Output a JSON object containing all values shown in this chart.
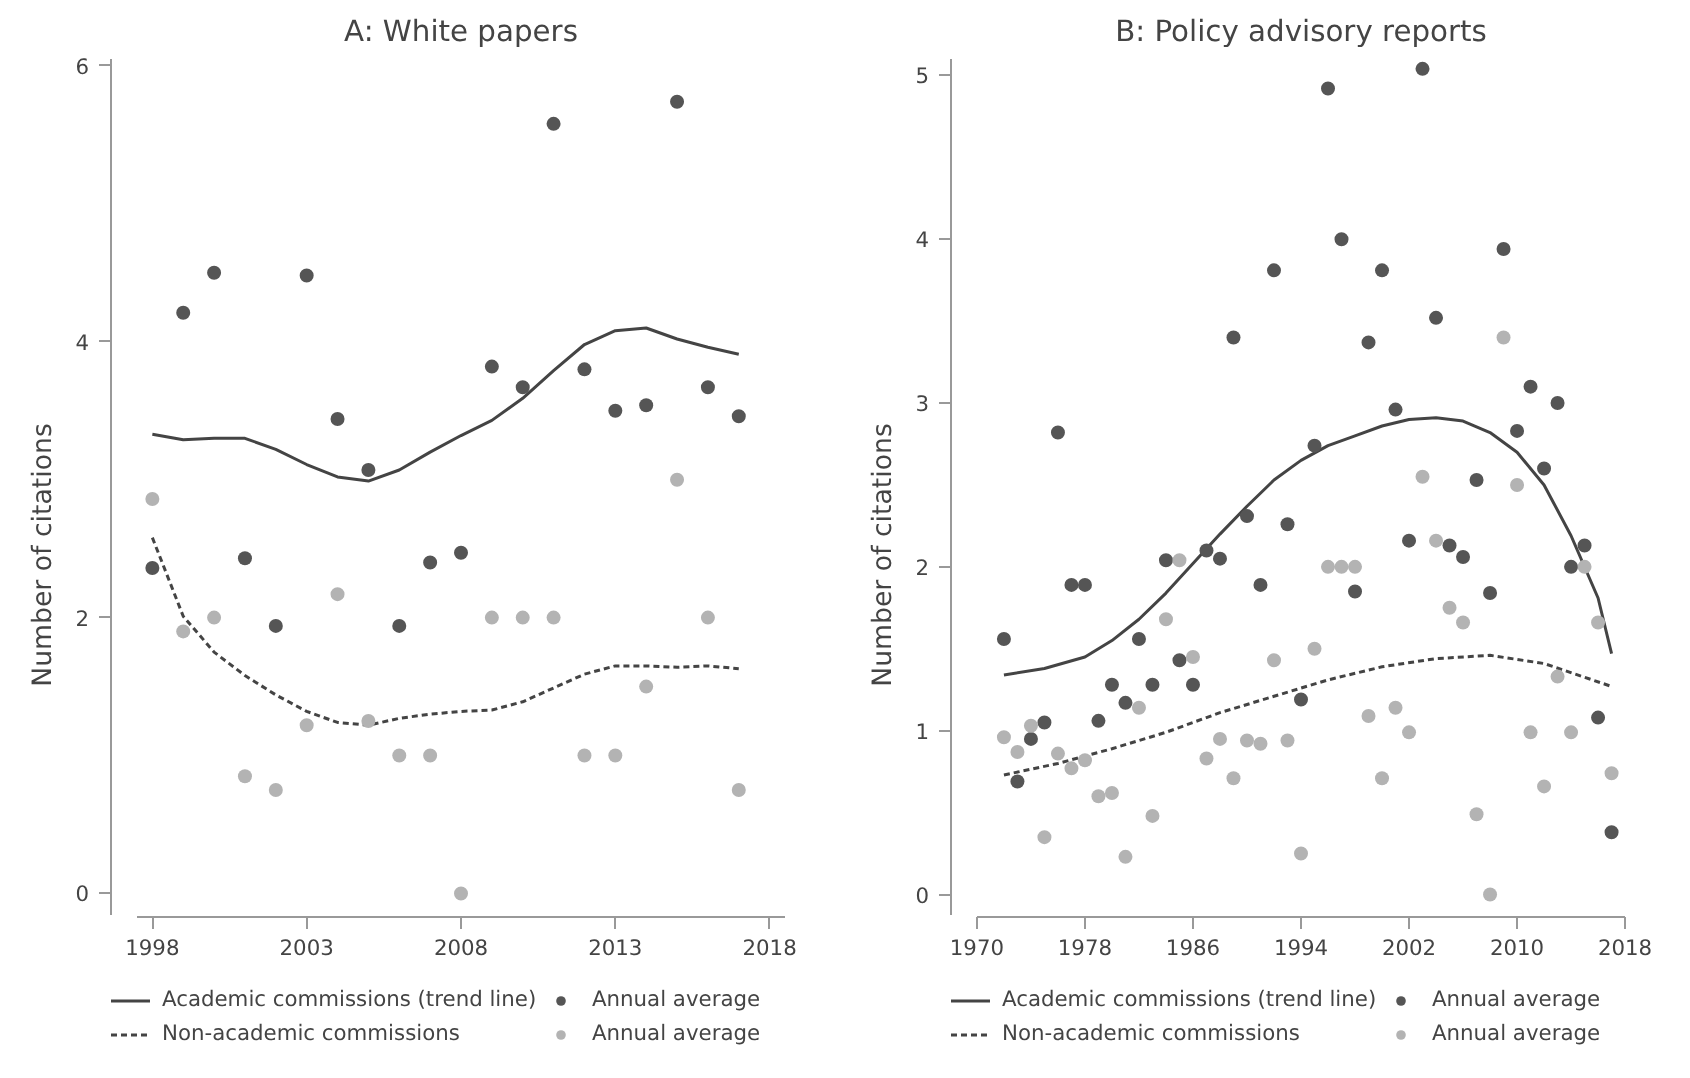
{
  "chart_data": [
    {
      "type": "line",
      "title": "A: White papers",
      "ylabel": "Number of citations",
      "xlim": [
        1997.5,
        2018.5
      ],
      "xticks": [
        1998,
        2003,
        2008,
        2013,
        2018
      ],
      "ylim": [
        -0.15,
        6.05
      ],
      "yticks": [
        0,
        2,
        4,
        6
      ],
      "grid": false,
      "legend": "bottom",
      "series": [
        {
          "name": "Academic commissions (trend line)",
          "line_style": "solid",
          "color": "#444444",
          "x": [
            1998,
            1999,
            2000,
            2001,
            2002,
            2003,
            2004,
            2005,
            2006,
            2007,
            2008,
            2009,
            2010,
            2011,
            2012,
            2013,
            2014,
            2015,
            2016,
            2017
          ],
          "values": [
            3.33,
            3.29,
            3.3,
            3.3,
            3.22,
            3.11,
            3.02,
            2.99,
            3.07,
            3.2,
            3.32,
            3.43,
            3.59,
            3.79,
            3.98,
            4.08,
            4.1,
            4.02,
            3.96,
            3.91
          ]
        },
        {
          "name": "Annual average",
          "type": "scatter",
          "marker": "circle",
          "color": "#555555",
          "x": [
            1998,
            1999,
            2000,
            2001,
            2002,
            2003,
            2004,
            2005,
            2006,
            2007,
            2008,
            2009,
            2010,
            2011,
            2012,
            2013,
            2014,
            2015,
            2016,
            2017
          ],
          "values": [
            2.36,
            4.21,
            4.5,
            2.43,
            1.94,
            4.48,
            3.44,
            3.07,
            1.94,
            2.4,
            2.47,
            3.82,
            3.67,
            5.58,
            3.8,
            3.5,
            3.54,
            5.74,
            3.67,
            3.46
          ]
        },
        {
          "name": "Non-academic commissions",
          "line_style": "dashed",
          "color": "#444444",
          "x": [
            1998,
            1999,
            2000,
            2001,
            2002,
            2003,
            2004,
            2005,
            2006,
            2007,
            2008,
            2009,
            2010,
            2011,
            2012,
            2013,
            2014,
            2015,
            2016,
            2017
          ],
          "values": [
            2.58,
            2.01,
            1.75,
            1.58,
            1.44,
            1.32,
            1.24,
            1.22,
            1.27,
            1.3,
            1.32,
            1.33,
            1.39,
            1.49,
            1.59,
            1.65,
            1.65,
            1.64,
            1.65,
            1.63
          ]
        },
        {
          "name": "Annual average",
          "type": "scatter",
          "marker": "circle",
          "color": "#b3b3b3",
          "x": [
            1998,
            1999,
            2000,
            2001,
            2002,
            2003,
            2004,
            2005,
            2006,
            2007,
            2008,
            2009,
            2010,
            2011,
            2012,
            2013,
            2014,
            2015,
            2016,
            2017
          ],
          "values": [
            2.86,
            1.9,
            2.0,
            0.85,
            0.75,
            1.22,
            2.17,
            1.25,
            1.0,
            1.0,
            0.0,
            2.0,
            2.0,
            2.0,
            1.0,
            1.0,
            1.5,
            3.0,
            2.0,
            0.75
          ]
        }
      ]
    },
    {
      "type": "line",
      "title": "B: Policy advisory reports",
      "ylabel": "Number of citations",
      "xlim": [
        1970,
        2018
      ],
      "xticks": [
        1970,
        1978,
        1986,
        1994,
        2002,
        2010,
        2018
      ],
      "ylim": [
        -0.12,
        5.1
      ],
      "yticks": [
        0,
        1,
        2,
        3,
        4,
        5
      ],
      "grid": false,
      "legend": "bottom",
      "series": [
        {
          "name": "Academic commissions (trend line)",
          "line_style": "solid",
          "color": "#444444",
          "x": [
            1972,
            1975,
            1978,
            1980,
            1982,
            1984,
            1986,
            1988,
            1990,
            1992,
            1994,
            1996,
            1998,
            2000,
            2002,
            2004,
            2006,
            2008,
            2010,
            2012,
            2014,
            2016,
            2017
          ],
          "values": [
            1.34,
            1.38,
            1.45,
            1.55,
            1.68,
            1.84,
            2.02,
            2.2,
            2.37,
            2.53,
            2.65,
            2.74,
            2.8,
            2.86,
            2.9,
            2.91,
            2.89,
            2.82,
            2.7,
            2.5,
            2.19,
            1.81,
            1.47
          ]
        },
        {
          "name": "Annual average",
          "type": "scatter",
          "marker": "circle",
          "color": "#555555",
          "x": [
            1972,
            1973,
            1974,
            1975,
            1976,
            1977,
            1978,
            1979,
            1980,
            1981,
            1982,
            1983,
            1984,
            1985,
            1986,
            1987,
            1988,
            1989,
            1990,
            1991,
            1992,
            1993,
            1994,
            1995,
            1996,
            1997,
            1998,
            1999,
            2000,
            2001,
            2002,
            2003,
            2004,
            2005,
            2006,
            2007,
            2008,
            2009,
            2010,
            2011,
            2012,
            2013,
            2014,
            2015,
            2016,
            2017
          ],
          "values": [
            1.56,
            0.69,
            0.95,
            1.05,
            2.82,
            1.89,
            1.89,
            1.06,
            1.28,
            1.17,
            1.56,
            1.28,
            2.04,
            1.43,
            1.28,
            2.1,
            2.05,
            3.4,
            2.31,
            1.89,
            3.81,
            2.26,
            1.19,
            2.74,
            4.92,
            4.0,
            1.85,
            3.37,
            3.81,
            2.96,
            2.16,
            5.04,
            3.52,
            2.13,
            2.06,
            2.53,
            1.84,
            3.94,
            2.83,
            3.1,
            2.6,
            3.0,
            2.0,
            2.13,
            1.08,
            0.38
          ]
        },
        {
          "name": "Non-academic commissions",
          "line_style": "dashed",
          "color": "#444444",
          "x": [
            1972,
            1976,
            1980,
            1984,
            1988,
            1992,
            1996,
            2000,
            2004,
            2008,
            2012,
            2017
          ],
          "values": [
            0.73,
            0.8,
            0.89,
            0.99,
            1.11,
            1.21,
            1.31,
            1.39,
            1.44,
            1.46,
            1.41,
            1.27
          ]
        },
        {
          "name": "Annual average",
          "type": "scatter",
          "marker": "circle",
          "color": "#b3b3b3",
          "x": [
            1972,
            1973,
            1974,
            1975,
            1976,
            1977,
            1978,
            1979,
            1980,
            1981,
            1982,
            1983,
            1984,
            1985,
            1986,
            1987,
            1988,
            1989,
            1990,
            1991,
            1992,
            1993,
            1994,
            1995,
            1996,
            1997,
            1998,
            1999,
            2000,
            2001,
            2002,
            2003,
            2004,
            2005,
            2006,
            2007,
            2008,
            2009,
            2010,
            2011,
            2012,
            2013,
            2014,
            2015,
            2016,
            2017
          ],
          "values": [
            0.96,
            0.87,
            1.03,
            0.35,
            0.86,
            0.77,
            0.82,
            0.6,
            0.62,
            0.23,
            1.14,
            0.48,
            1.68,
            2.04,
            1.45,
            0.83,
            0.95,
            0.71,
            0.94,
            0.92,
            1.43,
            0.94,
            0.25,
            1.5,
            2.0,
            2.0,
            2.0,
            1.09,
            0.71,
            1.14,
            0.99,
            2.55,
            2.16,
            1.75,
            1.66,
            0.49,
            0.0,
            3.4,
            2.5,
            0.99,
            0.66,
            1.33,
            0.99,
            2.0,
            1.66,
            0.74
          ]
        }
      ]
    }
  ]
}
